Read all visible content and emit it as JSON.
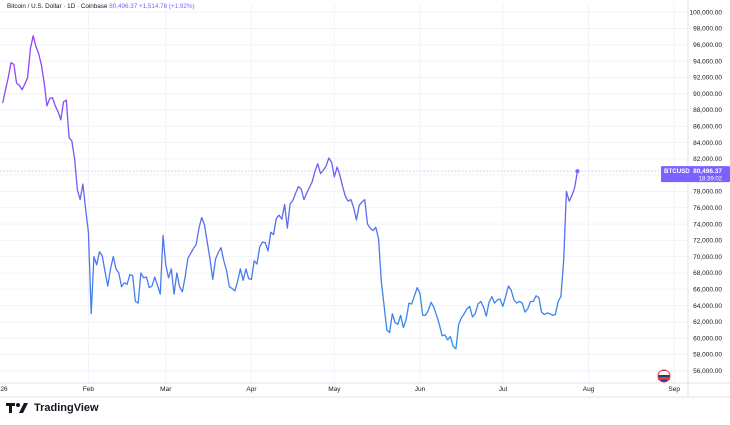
{
  "header": {
    "symbol_desc": "Bitcoin / U.S. Dollar · 1D · Coinbase",
    "last": "80,496.37",
    "change": "+1,514.78 (+1.92%)"
  },
  "price_tag": {
    "symbol": "BTCUSD",
    "value": "80,496.37",
    "countdown": "18:39:02"
  },
  "footer": {
    "brand": "TradingView"
  },
  "colors": {
    "line_start": "#9b3bff",
    "line_end": "#2f8fe6",
    "tag": "#7b61ff"
  },
  "chart_data": {
    "type": "line",
    "yaxis_ticks": [
      100000,
      98000,
      96000,
      94000,
      92000,
      90000,
      88000,
      86000,
      84000,
      82000,
      80000,
      78000,
      76000,
      74000,
      72000,
      70000,
      68000,
      66000,
      64000,
      62000,
      60000,
      58000,
      56000
    ],
    "ylim": [
      54500,
      101000
    ],
    "xaxis_ticks": [
      {
        "label": "26",
        "day": 0
      },
      {
        "label": "Feb",
        "day": 31
      },
      {
        "label": "Mar",
        "day": 59
      },
      {
        "label": "Apr",
        "day": 90
      },
      {
        "label": "May",
        "day": 120
      },
      {
        "label": "Jun",
        "day": 151
      },
      {
        "label": "Jul",
        "day": 181
      },
      {
        "label": "Aug",
        "day": 212
      },
      {
        "label": "Sep",
        "day": 243
      }
    ],
    "xlim": [
      -1,
      248
    ],
    "series": [
      {
        "values": [
          [
            0,
            88900
          ],
          [
            1,
            90500
          ],
          [
            2,
            92000
          ],
          [
            3,
            93800
          ],
          [
            4,
            93600
          ],
          [
            5,
            91300
          ],
          [
            6,
            91000
          ],
          [
            7,
            90500
          ],
          [
            8,
            91200
          ],
          [
            9,
            92000
          ],
          [
            10,
            95500
          ],
          [
            11,
            97100
          ],
          [
            12,
            95800
          ],
          [
            13,
            94900
          ],
          [
            14,
            93500
          ],
          [
            15,
            91300
          ],
          [
            16,
            88500
          ],
          [
            17,
            89400
          ],
          [
            18,
            89500
          ],
          [
            19,
            88500
          ],
          [
            20,
            87800
          ],
          [
            21,
            86800
          ],
          [
            22,
            89000
          ],
          [
            23,
            89200
          ],
          [
            24,
            84600
          ],
          [
            25,
            84200
          ],
          [
            26,
            82000
          ],
          [
            27,
            78200
          ],
          [
            28,
            77000
          ],
          [
            29,
            78900
          ],
          [
            30,
            75800
          ],
          [
            31,
            73000
          ],
          [
            32,
            63000
          ],
          [
            33,
            70000
          ],
          [
            34,
            69000
          ],
          [
            35,
            70600
          ],
          [
            36,
            70100
          ],
          [
            37,
            68200
          ],
          [
            38,
            66400
          ],
          [
            39,
            68500
          ],
          [
            40,
            70000
          ],
          [
            41,
            68500
          ],
          [
            42,
            68000
          ],
          [
            43,
            66300
          ],
          [
            44,
            66800
          ],
          [
            45,
            66600
          ],
          [
            46,
            67800
          ],
          [
            47,
            67700
          ],
          [
            48,
            64500
          ],
          [
            49,
            64300
          ],
          [
            50,
            68000
          ],
          [
            51,
            67400
          ],
          [
            52,
            67500
          ],
          [
            53,
            66200
          ],
          [
            54,
            66400
          ],
          [
            55,
            67500
          ],
          [
            56,
            66500
          ],
          [
            57,
            65400
          ],
          [
            58,
            72600
          ],
          [
            59,
            69000
          ],
          [
            60,
            67400
          ],
          [
            61,
            68500
          ],
          [
            62,
            65400
          ],
          [
            63,
            68000
          ],
          [
            64,
            66300
          ],
          [
            65,
            65700
          ],
          [
            66,
            67500
          ],
          [
            67,
            69800
          ],
          [
            68,
            70400
          ],
          [
            69,
            71000
          ],
          [
            70,
            71500
          ],
          [
            71,
            73500
          ],
          [
            72,
            74800
          ],
          [
            73,
            73900
          ],
          [
            74,
            71800
          ],
          [
            75,
            69700
          ],
          [
            76,
            67200
          ],
          [
            77,
            69700
          ],
          [
            78,
            70500
          ],
          [
            79,
            71100
          ],
          [
            80,
            69500
          ],
          [
            81,
            68300
          ],
          [
            82,
            66300
          ],
          [
            83,
            66100
          ],
          [
            84,
            65800
          ],
          [
            85,
            67000
          ],
          [
            86,
            68500
          ],
          [
            87,
            67100
          ],
          [
            88,
            68500
          ],
          [
            89,
            67300
          ],
          [
            90,
            67200
          ],
          [
            91,
            69500
          ],
          [
            92,
            69100
          ],
          [
            93,
            71200
          ],
          [
            94,
            71800
          ],
          [
            95,
            71700
          ],
          [
            96,
            70700
          ],
          [
            97,
            73000
          ],
          [
            98,
            72700
          ],
          [
            99,
            74700
          ],
          [
            100,
            75100
          ],
          [
            101,
            74600
          ],
          [
            102,
            76400
          ],
          [
            103,
            73500
          ],
          [
            104,
            76500
          ],
          [
            105,
            76900
          ],
          [
            106,
            77800
          ],
          [
            107,
            78600
          ],
          [
            108,
            78300
          ],
          [
            109,
            77000
          ],
          [
            110,
            77800
          ],
          [
            111,
            78500
          ],
          [
            112,
            79200
          ],
          [
            113,
            80500
          ],
          [
            114,
            81400
          ],
          [
            115,
            80200
          ],
          [
            116,
            80600
          ],
          [
            117,
            81100
          ],
          [
            118,
            82100
          ],
          [
            119,
            81600
          ],
          [
            120,
            79800
          ],
          [
            121,
            81000
          ],
          [
            122,
            80000
          ],
          [
            123,
            78600
          ],
          [
            124,
            77400
          ],
          [
            125,
            76800
          ],
          [
            126,
            77000
          ],
          [
            127,
            76000
          ],
          [
            128,
            74500
          ],
          [
            129,
            76300
          ],
          [
            130,
            76700
          ],
          [
            131,
            77000
          ],
          [
            132,
            74000
          ],
          [
            133,
            73500
          ],
          [
            134,
            73200
          ],
          [
            135,
            73600
          ],
          [
            136,
            72200
          ],
          [
            137,
            67000
          ],
          [
            138,
            64000
          ],
          [
            139,
            61000
          ],
          [
            140,
            60700
          ],
          [
            141,
            63000
          ],
          [
            142,
            61900
          ],
          [
            143,
            61700
          ],
          [
            144,
            62800
          ],
          [
            145,
            61300
          ],
          [
            146,
            62300
          ],
          [
            147,
            64300
          ],
          [
            148,
            64200
          ],
          [
            149,
            65200
          ],
          [
            150,
            66200
          ],
          [
            151,
            65500
          ],
          [
            152,
            62800
          ],
          [
            153,
            62800
          ],
          [
            154,
            63400
          ],
          [
            155,
            64400
          ],
          [
            156,
            63800
          ],
          [
            157,
            62800
          ],
          [
            158,
            61700
          ],
          [
            159,
            60300
          ],
          [
            160,
            60400
          ],
          [
            161,
            59800
          ],
          [
            162,
            60200
          ],
          [
            163,
            59000
          ],
          [
            164,
            58700
          ],
          [
            165,
            61700
          ],
          [
            166,
            62500
          ],
          [
            167,
            63000
          ],
          [
            168,
            63600
          ],
          [
            169,
            63900
          ],
          [
            170,
            62600
          ],
          [
            171,
            63000
          ],
          [
            172,
            64200
          ],
          [
            173,
            64500
          ],
          [
            174,
            63800
          ],
          [
            175,
            62700
          ],
          [
            176,
            64400
          ],
          [
            177,
            65100
          ],
          [
            178,
            64300
          ],
          [
            179,
            64700
          ],
          [
            180,
            64800
          ],
          [
            181,
            63900
          ],
          [
            182,
            65100
          ],
          [
            183,
            66400
          ],
          [
            184,
            65900
          ],
          [
            185,
            64700
          ],
          [
            186,
            64300
          ],
          [
            187,
            64500
          ],
          [
            188,
            64300
          ],
          [
            189,
            63200
          ],
          [
            190,
            63600
          ],
          [
            191,
            64500
          ],
          [
            192,
            64500
          ],
          [
            193,
            65200
          ],
          [
            194,
            65000
          ],
          [
            195,
            63200
          ],
          [
            196,
            62900
          ],
          [
            197,
            63100
          ],
          [
            198,
            63000
          ],
          [
            199,
            62800
          ],
          [
            200,
            62900
          ],
          [
            201,
            64500
          ],
          [
            202,
            65100
          ],
          [
            203,
            69500
          ],
          [
            204,
            78000
          ],
          [
            205,
            76800
          ],
          [
            206,
            77500
          ],
          [
            207,
            78500
          ],
          [
            208,
            80500
          ]
        ]
      }
    ]
  }
}
